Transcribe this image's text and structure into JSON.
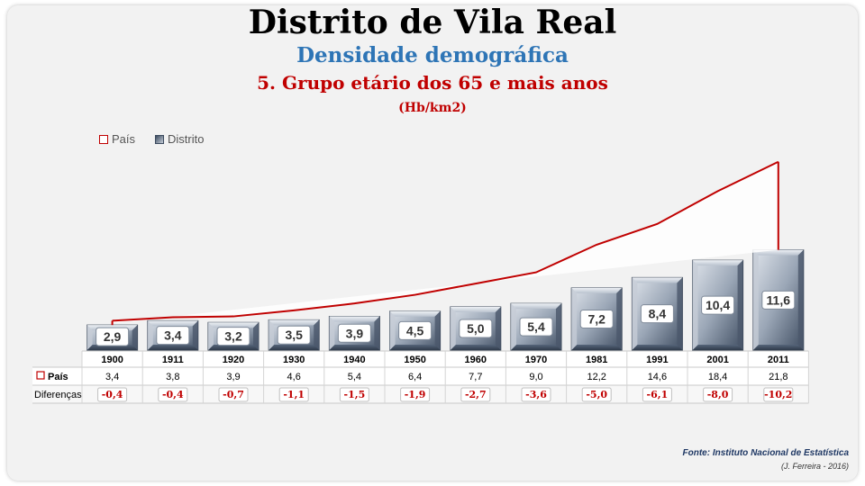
{
  "header": {
    "title": "Distrito de Vila Real",
    "subtitle": "Densidade demográfica",
    "group": "5. Grupo etário dos 65 e mais anos",
    "unit": "(Hb/km2)"
  },
  "legend": {
    "pais": "País",
    "distrito": "Distrito"
  },
  "table": {
    "pais_label": "País",
    "diff_label": "Diferenças"
  },
  "source": {
    "line1": "Fonte: Instituto Nacional de Estatística",
    "line2": "(J. Ferreira - 2016)"
  },
  "colors": {
    "pais_line": "#c00000",
    "bar_dark": "#4a5a70",
    "bar_light": "#c8d0dc",
    "diff_text": "#c00000"
  },
  "chart_data": {
    "type": "bar",
    "categories": [
      "1900",
      "1911",
      "1920",
      "1930",
      "1940",
      "1950",
      "1960",
      "1970",
      "1981",
      "1991",
      "2001",
      "2011"
    ],
    "series": [
      {
        "name": "Distrito",
        "type": "bar",
        "values": [
          2.9,
          3.4,
          3.2,
          3.5,
          3.9,
          4.5,
          5.0,
          5.4,
          7.2,
          8.4,
          10.4,
          11.6
        ],
        "labels": [
          "2,9",
          "3,4",
          "3,2",
          "3,5",
          "3,9",
          "4,5",
          "5,0",
          "5,4",
          "7,2",
          "8,4",
          "10,4",
          "11,6"
        ]
      },
      {
        "name": "País",
        "type": "line",
        "values": [
          3.4,
          3.8,
          3.9,
          4.6,
          5.4,
          6.4,
          7.7,
          9.0,
          12.2,
          14.6,
          18.4,
          21.8
        ],
        "labels": [
          "3,4",
          "3,8",
          "3,9",
          "4,6",
          "5,4",
          "6,4",
          "7,7",
          "9,0",
          "12,2",
          "14,6",
          "18,4",
          "21,8"
        ]
      }
    ],
    "differences": [
      "-0,4",
      "-0,4",
      "-0,7",
      "-1,1",
      "-1,5",
      "-1,9",
      "-2,7",
      "-3,6",
      "-5,0",
      "-6,1",
      "-8,0",
      "-10,2"
    ],
    "ylim": [
      0,
      22
    ]
  }
}
